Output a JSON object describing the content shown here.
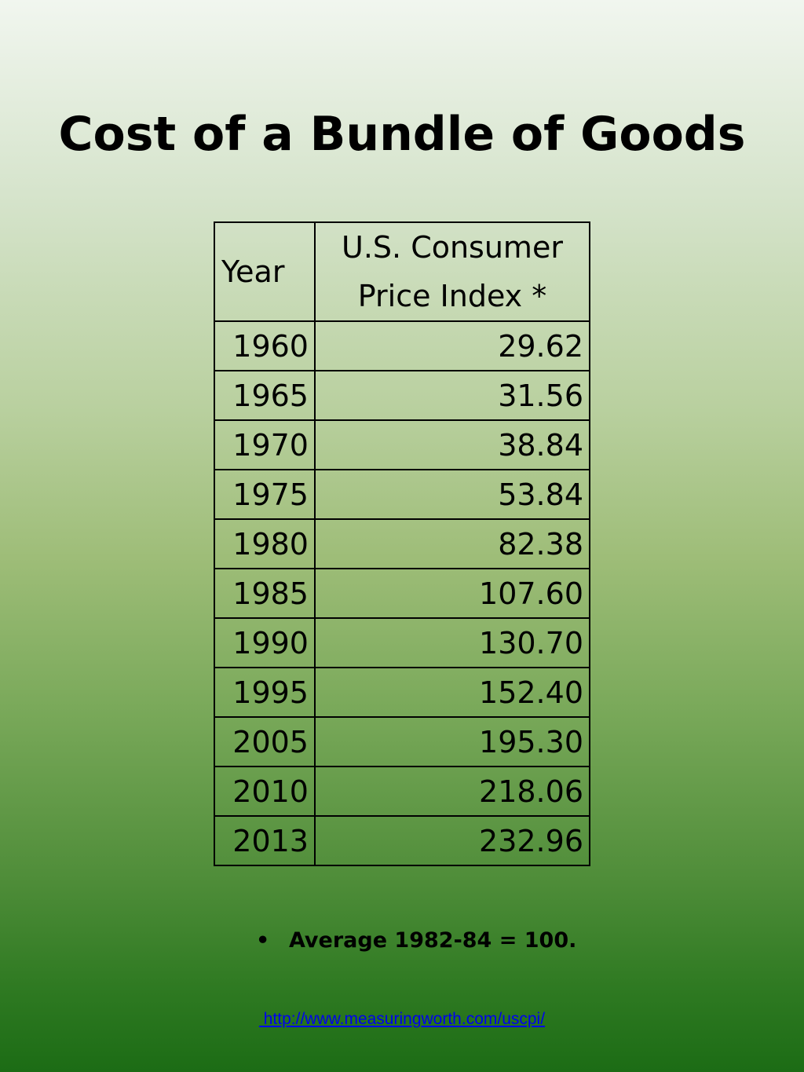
{
  "slide": {
    "title": "Cost of a Bundle of Goods"
  },
  "table": {
    "headers": {
      "year": "Year",
      "cpi_line1": "U.S. Consumer",
      "cpi_line2": "Price Index *"
    },
    "rows": [
      {
        "year": "1960",
        "cpi": "29.62"
      },
      {
        "year": "1965",
        "cpi": "31.56"
      },
      {
        "year": "1970",
        "cpi": "38.84"
      },
      {
        "year": "1975",
        "cpi": "53.84"
      },
      {
        "year": "1980",
        "cpi": "82.38"
      },
      {
        "year": "1985",
        "cpi": "107.60"
      },
      {
        "year": "1990",
        "cpi": "130.70"
      },
      {
        "year": "1995",
        "cpi": "152.40"
      },
      {
        "year": "2005",
        "cpi": "195.30"
      },
      {
        "year": "2010",
        "cpi": "218.06"
      },
      {
        "year": "2013",
        "cpi": "232.96"
      }
    ]
  },
  "footnote": {
    "bullet": "•",
    "text": "Average 1982-84 = 100."
  },
  "source": {
    "url": "http://www.measuringworth.com/uscpi/",
    "display": " http://www.measuringworth.com/uscpi/"
  }
}
